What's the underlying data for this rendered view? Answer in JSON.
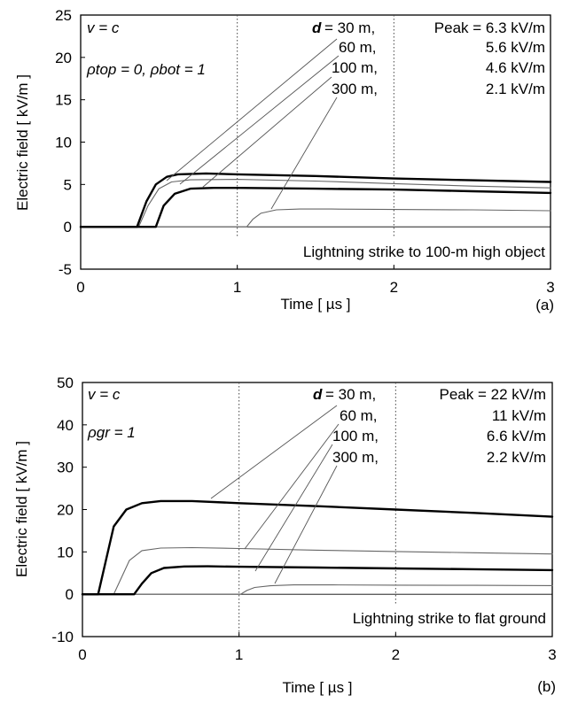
{
  "chart_data": [
    {
      "type": "line",
      "panel_label": "(a)",
      "xlabel": "Time [ µs ]",
      "ylabel": "Electric field [ kV/m ]",
      "xlim": [
        0,
        3
      ],
      "ylim": [
        -5,
        25
      ],
      "xticks": [
        "0",
        "1",
        "2",
        "3"
      ],
      "yticks": [
        "-5",
        "0",
        "5",
        "10",
        "15",
        "20",
        "25"
      ],
      "grid": "vertical dotted at 1 and 2",
      "annotations": {
        "velocity": "v = c",
        "params": "ρtop = 0,   ρbot = 1",
        "d_label": "d",
        "d_values": [
          "= 30 m,",
          "60 m,",
          "100 m,",
          "300 m,"
        ],
        "peak_values": [
          "Peak = 6.3 kV/m",
          "5.6 kV/m",
          "4.6 kV/m",
          "2.1 kV/m"
        ],
        "caption": "Lightning strike to 100-m high object"
      },
      "series": [
        {
          "name": "30 m",
          "peak": 6.3,
          "onset": 0.36,
          "x": [
            0,
            0.36,
            0.42,
            0.48,
            0.55,
            0.62,
            0.8,
            1.0,
            1.5,
            2.0,
            2.5,
            3.0
          ],
          "y": [
            0,
            0,
            3.0,
            5.0,
            5.9,
            6.2,
            6.3,
            6.2,
            6.0,
            5.7,
            5.5,
            5.3
          ]
        },
        {
          "name": "60 m",
          "peak": 5.6,
          "onset": 0.37,
          "x": [
            0,
            0.37,
            0.43,
            0.5,
            0.58,
            0.7,
            1.0,
            1.5,
            2.0,
            2.5,
            3.0
          ],
          "y": [
            0,
            0,
            2.5,
            4.5,
            5.3,
            5.55,
            5.6,
            5.4,
            5.1,
            4.8,
            4.6
          ]
        },
        {
          "name": "100 m",
          "peak": 4.6,
          "onset": 0.48,
          "x": [
            0,
            0.48,
            0.53,
            0.6,
            0.7,
            0.85,
            1.0,
            1.5,
            2.0,
            2.5,
            3.0
          ],
          "y": [
            0,
            0,
            2.5,
            3.9,
            4.5,
            4.6,
            4.6,
            4.5,
            4.4,
            4.2,
            4.0
          ]
        },
        {
          "name": "300 m",
          "peak": 2.1,
          "onset": 1.06,
          "x": [
            0,
            1.06,
            1.1,
            1.15,
            1.25,
            1.4,
            1.6,
            2.0,
            2.5,
            3.0
          ],
          "y": [
            0,
            0,
            0.9,
            1.6,
            2.0,
            2.1,
            2.1,
            2.05,
            2.0,
            1.9
          ]
        }
      ]
    },
    {
      "type": "line",
      "panel_label": "(b)",
      "xlabel": "Time [ µs ]",
      "ylabel": "Electric field [ kV/m ]",
      "xlim": [
        0,
        3
      ],
      "ylim": [
        -10,
        50
      ],
      "xticks": [
        "0",
        "1",
        "2",
        "3"
      ],
      "yticks": [
        "-10",
        "0",
        "10",
        "20",
        "30",
        "40",
        "50"
      ],
      "grid": "vertical dotted at 1 and 2",
      "annotations": {
        "velocity": "v = c",
        "params": "ρgr = 1",
        "d_label": "d",
        "d_values": [
          "= 30 m,",
          "60 m,",
          "100 m,",
          "300 m,"
        ],
        "peak_values": [
          "Peak = 22 kV/m",
          "11 kV/m",
          "6.6 kV/m",
          "2.2 kV/m"
        ],
        "caption": "Lightning strike to flat ground"
      },
      "series": [
        {
          "name": "30 m",
          "peak": 22,
          "onset": 0.1,
          "x": [
            0,
            0.1,
            0.15,
            0.2,
            0.28,
            0.38,
            0.5,
            0.7,
            1.0,
            1.5,
            2.0,
            2.5,
            3.0
          ],
          "y": [
            0,
            0,
            8,
            16,
            20,
            21.5,
            22,
            22,
            21.5,
            20.8,
            20,
            19.2,
            18.3
          ]
        },
        {
          "name": "60 m",
          "peak": 11,
          "onset": 0.2,
          "x": [
            0,
            0.2,
            0.25,
            0.3,
            0.38,
            0.5,
            0.7,
            1.0,
            1.5,
            2.0,
            2.5,
            3.0
          ],
          "y": [
            0,
            0,
            4,
            8,
            10.3,
            10.9,
            11,
            10.8,
            10.4,
            10.1,
            9.8,
            9.5
          ]
        },
        {
          "name": "100 m",
          "peak": 6.6,
          "onset": 0.33,
          "x": [
            0,
            0.33,
            0.38,
            0.44,
            0.52,
            0.65,
            0.8,
            1.0,
            1.5,
            2.0,
            2.5,
            3.0
          ],
          "y": [
            0,
            0,
            2.5,
            5.0,
            6.2,
            6.55,
            6.6,
            6.5,
            6.3,
            6.1,
            5.9,
            5.7
          ]
        },
        {
          "name": "300 m",
          "peak": 2.2,
          "onset": 1.01,
          "x": [
            0,
            1.01,
            1.05,
            1.1,
            1.2,
            1.35,
            1.6,
            2.0,
            2.5,
            3.0
          ],
          "y": [
            0,
            0,
            0.9,
            1.6,
            2.0,
            2.2,
            2.2,
            2.15,
            2.1,
            2.05
          ]
        }
      ]
    }
  ],
  "colors": {
    "ink": "#000000",
    "line_thin": "#555555",
    "grid": "#444444"
  }
}
